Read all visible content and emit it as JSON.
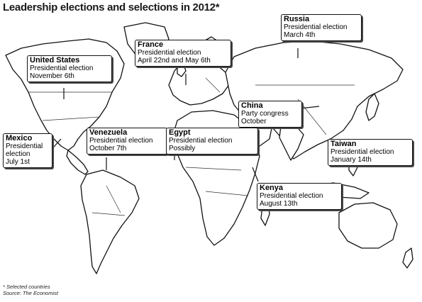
{
  "title": "Leadership elections and selections in 2012*",
  "callouts": [
    {
      "country": "United States",
      "event": "Presidential election",
      "date": "November 6th"
    },
    {
      "country": "France",
      "event": "Presidential election",
      "date": "April 22nd and May 6th"
    },
    {
      "country": "Russia",
      "event": "Presidential election",
      "date": "March 4th"
    },
    {
      "country": "China",
      "event": "Party congress",
      "date": "October"
    },
    {
      "country": "Mexico",
      "event": "Presidential election",
      "date": "July 1st"
    },
    {
      "country": "Venezuela",
      "event": "Presidential election",
      "date": "October 7th"
    },
    {
      "country": "Egypt",
      "event": "Presidential election",
      "date": "Possibly"
    },
    {
      "country": "Taiwan",
      "event": "Presidential election",
      "date": "January 14th"
    },
    {
      "country": "Kenya",
      "event": "Presidential election",
      "date": "August 13th"
    }
  ],
  "footnote": {
    "note": "* Selected countries",
    "source": "Source: The Economist"
  }
}
